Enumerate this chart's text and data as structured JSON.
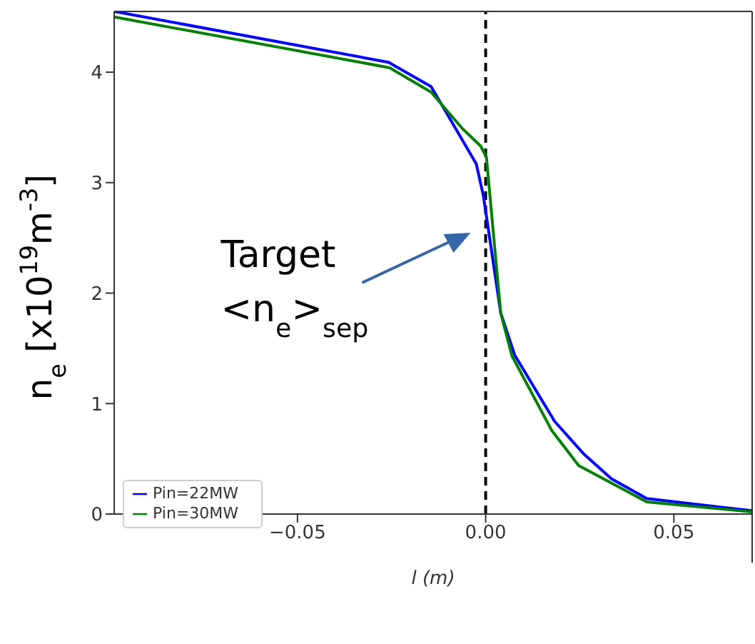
{
  "chart_data": {
    "type": "line",
    "xlabel": "l (m)",
    "ylabel": "n$_{e}$ [x10$^{19}$m$^{-3}$]",
    "xlim": [
      -0.0987,
      0.0708
    ],
    "xticks": [
      {
        "value": -0.05,
        "label": "−0.05"
      },
      {
        "value": 0,
        "label": "0.00"
      },
      {
        "value": 0.05,
        "label": "0.05"
      }
    ],
    "ylim": [
      0,
      4.55
    ],
    "yticks": [
      0,
      1,
      2,
      3,
      4
    ],
    "legend": "bottom left",
    "marker": "none",
    "line_style": "solid",
    "series": [
      {
        "name": "Pin=22MW",
        "color": "#0000ff",
        "x": [
          -0.0987,
          -0.0258,
          -0.0145,
          -0.0025,
          -0.0006,
          0.004,
          0.0077,
          0.0183,
          0.0259,
          0.0334,
          0.0428,
          0.0708
        ],
        "values": [
          4.55,
          4.09,
          3.87,
          3.17,
          2.88,
          1.82,
          1.44,
          0.84,
          0.55,
          0.32,
          0.14,
          0.03
        ]
      },
      {
        "name": "Pin=30MW",
        "color": "#008000",
        "x": [
          -0.0987,
          -0.0255,
          -0.0145,
          -0.0062,
          -0.0013,
          0.0002,
          0.004,
          0.007,
          0.0175,
          0.0247,
          0.0428,
          0.0708
        ],
        "values": [
          4.5,
          4.04,
          3.82,
          3.49,
          3.33,
          3.23,
          1.82,
          1.43,
          0.76,
          0.44,
          0.11,
          0.02
        ]
      }
    ],
    "ref_lines": [
      {
        "axis": "x",
        "value": 0,
        "color": "#000000",
        "line_style": "dashed"
      }
    ],
    "annotations": [
      "Target\n<n$_{e}$>$_{sep}$"
    ]
  }
}
